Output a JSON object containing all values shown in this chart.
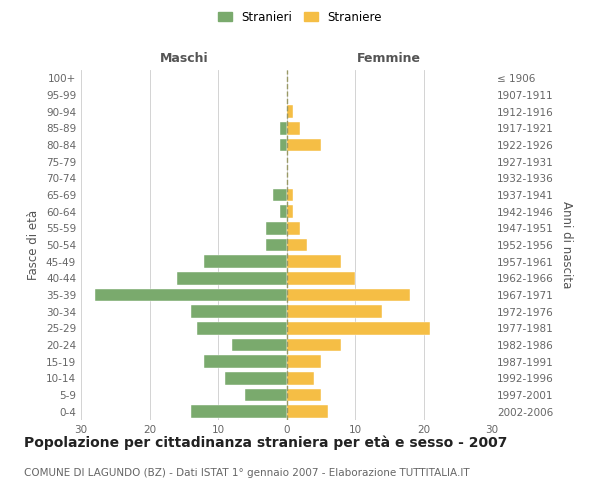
{
  "age_groups": [
    "0-4",
    "5-9",
    "10-14",
    "15-19",
    "20-24",
    "25-29",
    "30-34",
    "35-39",
    "40-44",
    "45-49",
    "50-54",
    "55-59",
    "60-64",
    "65-69",
    "70-74",
    "75-79",
    "80-84",
    "85-89",
    "90-94",
    "95-99",
    "100+"
  ],
  "birth_years": [
    "2002-2006",
    "1997-2001",
    "1992-1996",
    "1987-1991",
    "1982-1986",
    "1977-1981",
    "1972-1976",
    "1967-1971",
    "1962-1966",
    "1957-1961",
    "1952-1956",
    "1947-1951",
    "1942-1946",
    "1937-1941",
    "1932-1936",
    "1927-1931",
    "1922-1926",
    "1917-1921",
    "1912-1916",
    "1907-1911",
    "≤ 1906"
  ],
  "males": [
    14,
    6,
    9,
    12,
    8,
    13,
    14,
    28,
    16,
    12,
    3,
    3,
    1,
    2,
    0,
    0,
    1,
    1,
    0,
    0,
    0
  ],
  "females": [
    6,
    5,
    4,
    5,
    8,
    21,
    14,
    18,
    10,
    8,
    3,
    2,
    1,
    1,
    0,
    0,
    5,
    2,
    1,
    0,
    0
  ],
  "male_color": "#7aaa6d",
  "female_color": "#f5be45",
  "background_color": "#ffffff",
  "grid_color": "#cccccc",
  "center_line_color": "#aaaaaa",
  "title": "Popolazione per cittadinanza straniera per età e sesso - 2007",
  "subtitle": "COMUNE DI LAGUNDO (BZ) - Dati ISTAT 1° gennaio 2007 - Elaborazione TUTTITALIA.IT",
  "header_left": "Maschi",
  "header_right": "Femmine",
  "ylabel_left": "Fasce di età",
  "ylabel_right": "Anni di nascita",
  "xlim": 30,
  "legend_stranieri": "Stranieri",
  "legend_straniere": "Straniere",
  "title_fontsize": 10,
  "subtitle_fontsize": 7.5,
  "header_fontsize": 9,
  "label_fontsize": 8.5,
  "tick_fontsize": 7.5
}
